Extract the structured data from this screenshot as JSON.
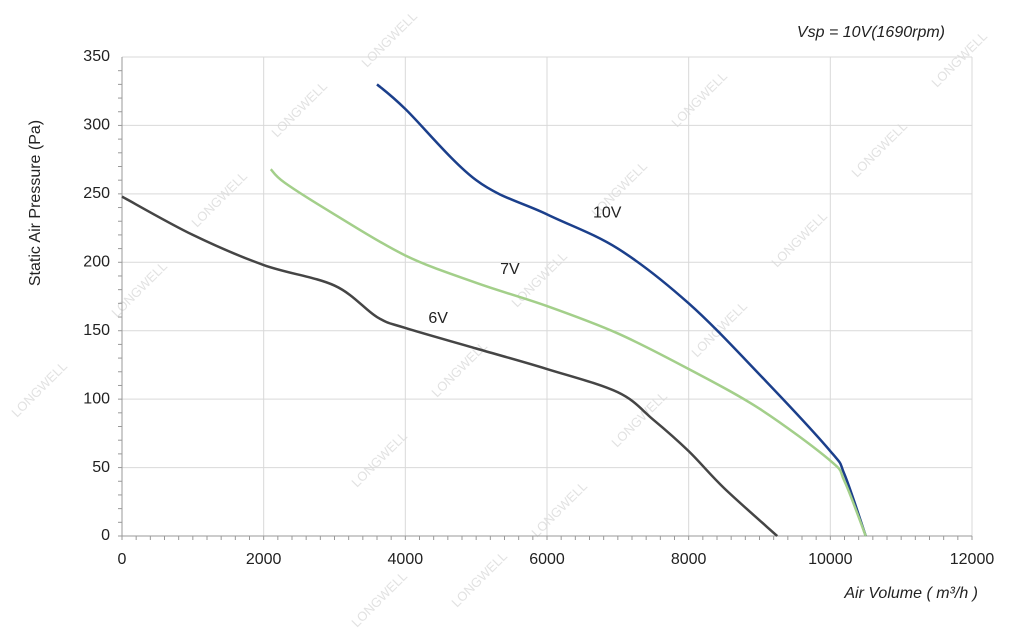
{
  "chart_data": {
    "type": "line",
    "title": "Vsp = 10V(1690rpm)",
    "x_label": "Air Volume ( m³/h )",
    "y_label": "Static Air Pressure  (Pa)",
    "watermark": "LONGWELL",
    "xlim": [
      0,
      12000
    ],
    "xticks": [
      0,
      2000,
      4000,
      6000,
      8000,
      10000,
      12000
    ],
    "ylim": [
      0,
      350
    ],
    "yticks": [
      0,
      50,
      100,
      150,
      200,
      250,
      300,
      350
    ],
    "grid": true,
    "series": [
      {
        "name": "10V",
        "color": "#1b3f8b",
        "x": [
          3600,
          4000,
          5000,
          6000,
          7000,
          8000,
          9000,
          10000,
          10200,
          10500
        ],
        "values": [
          330,
          312,
          260,
          235,
          210,
          170,
          118,
          62,
          45,
          0
        ]
      },
      {
        "name": "7V",
        "color": "#a3cf8a",
        "x": [
          2100,
          2300,
          3000,
          4000,
          5000,
          6000,
          7000,
          8000,
          9000,
          10000,
          10200,
          10500
        ],
        "values": [
          268,
          258,
          235,
          205,
          185,
          168,
          148,
          122,
          93,
          55,
          40,
          0
        ]
      },
      {
        "name": "6V",
        "color": "#454545",
        "x": [
          0,
          1000,
          2000,
          3000,
          3600,
          4000,
          5000,
          6000,
          7000,
          7500,
          8000,
          8500,
          9250
        ],
        "values": [
          248,
          220,
          198,
          183,
          160,
          152,
          137,
          122,
          105,
          85,
          62,
          35,
          0
        ]
      }
    ]
  }
}
